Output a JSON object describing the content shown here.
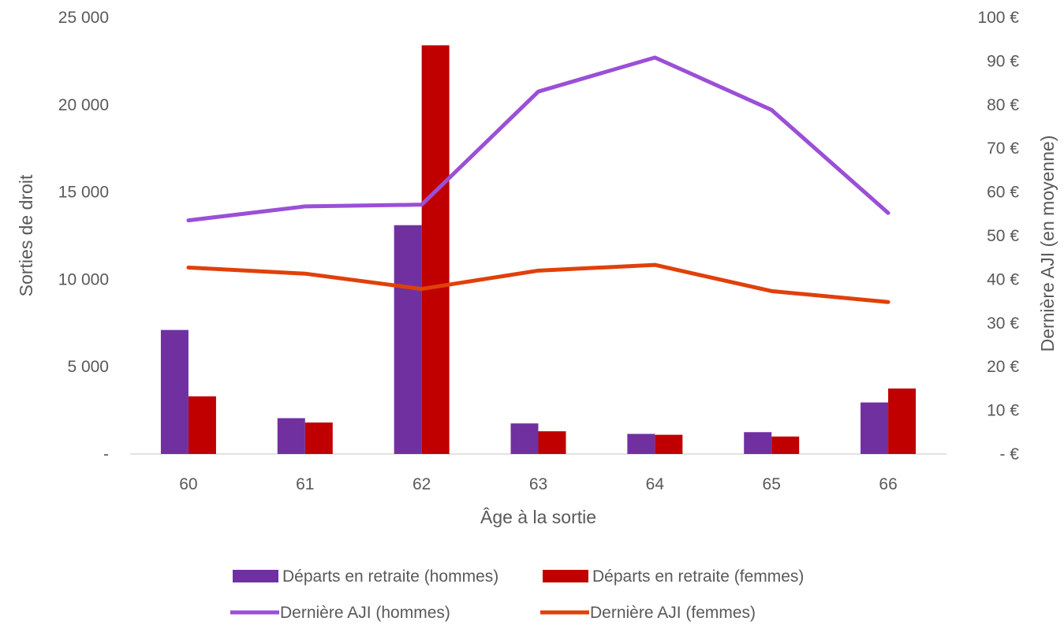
{
  "chart_data": {
    "type": "bar",
    "categories": [
      "60",
      "61",
      "62",
      "63",
      "64",
      "65",
      "66"
    ],
    "xlabel": "Âge à la sortie",
    "ylabel": "Sorties de droit",
    "y2label": "Dernière AJI (en moyenne)",
    "ylim": [
      0,
      25000
    ],
    "y2lim": [
      0,
      100
    ],
    "y_ticks": [
      "-",
      "5 000",
      "10 000",
      "15 000",
      "20 000",
      "25 000"
    ],
    "y2_ticks": [
      "-   €",
      "10 €",
      "20 €",
      "30 €",
      "40 €",
      "50 €",
      "60 €",
      "70 €",
      "80 €",
      "90 €",
      "100 €"
    ],
    "grid": false,
    "legend_position": "bottom",
    "bar_series": [
      {
        "name": "Départs en retraite (hommes)",
        "color": "#7030A0",
        "values": [
          7100,
          2050,
          13100,
          1750,
          1150,
          1250,
          2950
        ]
      },
      {
        "name": "Départs en retraite (femmes)",
        "color": "#C00000",
        "values": [
          3300,
          1800,
          23400,
          1300,
          1100,
          1000,
          3750
        ]
      }
    ],
    "line_series": [
      {
        "name": "Dernière AJI (hommes)",
        "color": "#9B4FD6",
        "axis": "right",
        "values": [
          53.5,
          56.7,
          57.1,
          83.0,
          90.8,
          78.8,
          55.2
        ]
      },
      {
        "name": "Dernière AJI (femmes)",
        "color": "#E0400A",
        "axis": "right",
        "values": [
          42.7,
          41.3,
          37.8,
          42.0,
          43.3,
          37.3,
          34.8
        ]
      }
    ]
  }
}
